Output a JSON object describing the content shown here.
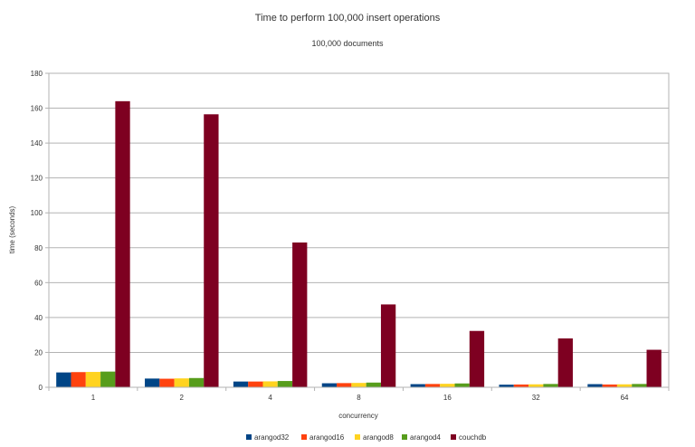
{
  "chart_data": {
    "type": "bar",
    "title": "Time to perform 100,000 insert operations",
    "subtitle": "100,000 documents",
    "xlabel": "concurrency",
    "ylabel": "time (seconds)",
    "categories": [
      "1",
      "2",
      "4",
      "8",
      "16",
      "32",
      "64"
    ],
    "ylim": [
      0,
      180
    ],
    "yticks": [
      0,
      20,
      40,
      60,
      80,
      100,
      120,
      140,
      160,
      180
    ],
    "grid": true,
    "legend": "bottom",
    "series": [
      {
        "name": "arangod32",
        "color": "#004586",
        "values": [
          8.5,
          5.0,
          3.3,
          2.3,
          1.8,
          1.5,
          1.8
        ]
      },
      {
        "name": "arangod16",
        "color": "#ff420e",
        "values": [
          8.7,
          4.9,
          3.3,
          2.4,
          1.9,
          1.6,
          1.6
        ]
      },
      {
        "name": "arangod8",
        "color": "#ffd320",
        "values": [
          8.8,
          5.1,
          3.4,
          2.5,
          2.0,
          1.7,
          1.7
        ]
      },
      {
        "name": "arangod4",
        "color": "#579d1c",
        "values": [
          9.0,
          5.3,
          3.6,
          2.7,
          2.2,
          1.9,
          1.9
        ]
      },
      {
        "name": "couchdb",
        "color": "#7e0021",
        "values": [
          164,
          156.5,
          83,
          47.5,
          32.3,
          28,
          21.5
        ]
      }
    ]
  }
}
